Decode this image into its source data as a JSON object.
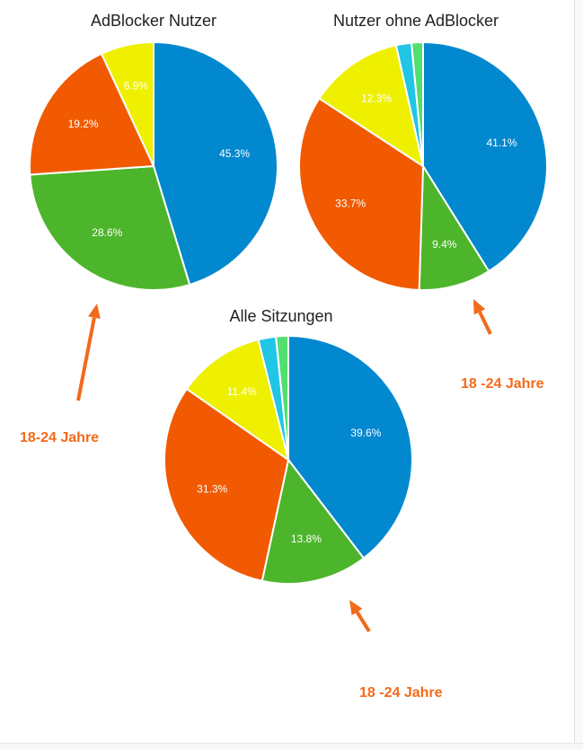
{
  "chart_data": [
    {
      "type": "pie",
      "title": "AdBlocker Nutzer",
      "slices": [
        {
          "label": "45.3%",
          "value": 45.3,
          "color": "#0288cf"
        },
        {
          "label": "28.6%",
          "value": 28.6,
          "color": "#4db52b"
        },
        {
          "label": "19.2%",
          "value": 19.2,
          "color": "#f15a00"
        },
        {
          "label": "6.9%",
          "value": 6.9,
          "color": "#eef000"
        }
      ]
    },
    {
      "type": "pie",
      "title": "Nutzer ohne AdBlocker",
      "slices": [
        {
          "label": "41.1%",
          "value": 41.1,
          "color": "#0288cf"
        },
        {
          "label": "9.4%",
          "value": 9.4,
          "color": "#4db52b"
        },
        {
          "label": "33.7%",
          "value": 33.7,
          "color": "#f15a00"
        },
        {
          "label": "12.3%",
          "value": 12.3,
          "color": "#eef000"
        },
        {
          "label": "",
          "value": 2.0,
          "color": "#21c5e6"
        },
        {
          "label": "",
          "value": 1.5,
          "color": "#52de70"
        }
      ]
    },
    {
      "type": "pie",
      "title": "Alle Sitzungen",
      "slices": [
        {
          "label": "39.6%",
          "value": 39.6,
          "color": "#0288cf"
        },
        {
          "label": "13.8%",
          "value": 13.8,
          "color": "#4db52b"
        },
        {
          "label": "31.3%",
          "value": 31.3,
          "color": "#f15a00"
        },
        {
          "label": "11.4%",
          "value": 11.4,
          "color": "#eef000"
        },
        {
          "label": "",
          "value": 2.3,
          "color": "#21c5e6"
        },
        {
          "label": "",
          "value": 1.6,
          "color": "#52de70"
        }
      ]
    }
  ],
  "annotations": {
    "left_label": "18-24 Jahre",
    "right_label": "18 -24 Jahre",
    "bottom_label": "18 -24 Jahre",
    "arrow_color": "#f26a1b"
  }
}
